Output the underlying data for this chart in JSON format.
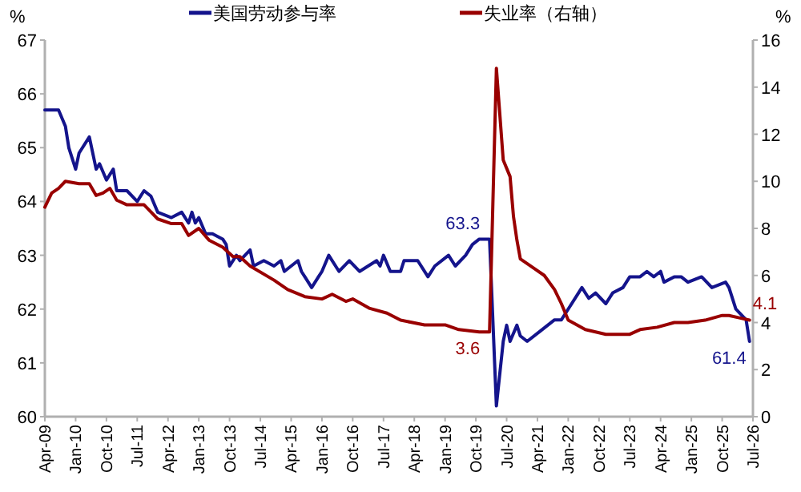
{
  "chart_data": {
    "type": "line",
    "ylabel": "%",
    "y2label": "%",
    "ylim": [
      60,
      67
    ],
    "yticks": [
      60,
      61,
      62,
      63,
      64,
      65,
      66,
      67
    ],
    "y2lim": [
      0,
      16
    ],
    "y2ticks": [
      0,
      2,
      4,
      6,
      8,
      10,
      12,
      14,
      16
    ],
    "xlim": [
      "2009-04",
      "2026-07"
    ],
    "xticks": [
      {
        "value": "2009-04",
        "label": "Apr-09"
      },
      {
        "value": "2010-01",
        "label": "Jan-10"
      },
      {
        "value": "2010-10",
        "label": "Oct-10"
      },
      {
        "value": "2011-07",
        "label": "Jul-11"
      },
      {
        "value": "2012-04",
        "label": "Apr-12"
      },
      {
        "value": "2013-01",
        "label": "Jan-13"
      },
      {
        "value": "2013-10",
        "label": "Oct-13"
      },
      {
        "value": "2014-07",
        "label": "Jul-14"
      },
      {
        "value": "2015-04",
        "label": "Apr-15"
      },
      {
        "value": "2016-01",
        "label": "Jan-16"
      },
      {
        "value": "2016-10",
        "label": "Oct-16"
      },
      {
        "value": "2017-07",
        "label": "Jul-17"
      },
      {
        "value": "2018-04",
        "label": "Apr-18"
      },
      {
        "value": "2019-01",
        "label": "Jan-19"
      },
      {
        "value": "2019-10",
        "label": "Oct-19"
      },
      {
        "value": "2020-07",
        "label": "Jul-20"
      },
      {
        "value": "2021-04",
        "label": "Apr-21"
      },
      {
        "value": "2022-01",
        "label": "Jan-22"
      },
      {
        "value": "2022-10",
        "label": "Oct-22"
      },
      {
        "value": "2023-07",
        "label": "Jul-23"
      },
      {
        "value": "2024-04",
        "label": "Apr-24"
      },
      {
        "value": "2025-01",
        "label": "Jan-25"
      },
      {
        "value": "2025-10",
        "label": "Oct-25"
      },
      {
        "value": "2026-07",
        "label": "Jul-26"
      }
    ],
    "legend": "top",
    "grid": false,
    "marker": "none",
    "line_style": "solid",
    "series": [
      {
        "name": "美国劳动参与率",
        "color": "#14148c",
        "x": [
          "2009-04",
          "2009-08",
          "2009-10",
          "2009-11",
          "2010-01",
          "2010-02",
          "2010-05",
          "2010-07",
          "2010-08",
          "2010-10",
          "2010-12",
          "2011-01",
          "2011-04",
          "2011-07",
          "2011-09",
          "2011-11",
          "2012-01",
          "2012-05",
          "2012-08",
          "2012-10",
          "2012-11",
          "2012-12",
          "2013-01",
          "2013-03",
          "2013-05",
          "2013-08",
          "2013-09",
          "2013-10",
          "2013-12",
          "2014-01",
          "2014-04",
          "2014-05",
          "2014-08",
          "2014-11",
          "2015-01",
          "2015-02",
          "2015-06",
          "2015-07",
          "2015-08",
          "2015-10",
          "2015-12",
          "2016-01",
          "2016-03",
          "2016-06",
          "2016-09",
          "2016-12",
          "2017-05",
          "2017-06",
          "2017-07",
          "2017-09",
          "2017-12",
          "2018-01",
          "2018-05",
          "2018-08",
          "2018-10",
          "2019-02",
          "2019-04",
          "2019-07",
          "2019-09",
          "2019-11",
          "2020-02",
          "2020-04",
          "2020-06",
          "2020-07",
          "2020-08",
          "2020-10",
          "2020-11",
          "2021-01",
          "2021-05",
          "2021-09",
          "2021-11",
          "2022-01",
          "2022-04",
          "2022-05",
          "2022-07",
          "2022-09",
          "2022-12",
          "2023-02",
          "2023-05",
          "2023-07",
          "2023-10",
          "2023-12",
          "2024-02",
          "2024-04",
          "2024-05",
          "2024-08",
          "2024-10",
          "2024-12",
          "2025-04",
          "2025-07",
          "2025-11",
          "2025-12",
          "2026-02",
          "2026-05",
          "2026-06"
        ],
        "values": [
          65.7,
          65.7,
          65.4,
          65.0,
          64.6,
          64.9,
          65.2,
          64.6,
          64.7,
          64.4,
          64.6,
          64.2,
          64.2,
          64.0,
          64.2,
          64.1,
          63.8,
          63.7,
          63.8,
          63.6,
          63.8,
          63.6,
          63.7,
          63.4,
          63.4,
          63.3,
          63.2,
          62.8,
          63.0,
          62.9,
          63.1,
          62.8,
          62.9,
          62.8,
          62.9,
          62.7,
          62.9,
          62.7,
          62.6,
          62.4,
          62.6,
          62.7,
          63.0,
          62.7,
          62.9,
          62.7,
          62.9,
          62.8,
          63.0,
          62.7,
          62.7,
          62.9,
          62.9,
          62.6,
          62.8,
          63.0,
          62.8,
          63.0,
          63.2,
          63.3,
          63.3,
          60.2,
          61.4,
          61.7,
          61.4,
          61.7,
          61.5,
          61.4,
          61.6,
          61.8,
          61.8,
          62.0,
          62.3,
          62.4,
          62.2,
          62.3,
          62.1,
          62.3,
          62.4,
          62.6,
          62.6,
          62.7,
          62.6,
          62.7,
          62.5,
          62.6,
          62.6,
          62.5,
          62.6,
          62.4,
          62.5,
          62.4,
          62.0,
          61.8,
          61.4
        ],
        "value_labels": [
          null,
          null,
          null,
          null,
          null,
          null,
          null,
          null,
          null,
          null,
          null,
          null,
          null,
          null,
          null,
          null,
          null,
          null,
          null,
          null,
          null,
          null,
          null,
          null,
          null,
          null,
          null,
          null,
          null,
          null,
          null,
          null,
          null,
          null,
          null,
          null,
          null,
          null,
          null,
          null,
          null,
          null,
          null,
          null,
          null,
          null,
          null,
          null,
          null,
          null,
          null,
          null,
          null,
          null,
          null,
          null,
          null,
          null,
          null,
          null,
          "63.3",
          null,
          null,
          null,
          null,
          null,
          null,
          null,
          null,
          null,
          null,
          null,
          null,
          null,
          null,
          null,
          null,
          null,
          null,
          null,
          null,
          null,
          null,
          null,
          null,
          null,
          null,
          null,
          null,
          null,
          null,
          null,
          null,
          null,
          "61.4"
        ]
      },
      {
        "name": "失业率（右轴）",
        "color": "#990000",
        "axis": "y2",
        "x": [
          "2009-04",
          "2009-06",
          "2009-08",
          "2009-10",
          "2010-02",
          "2010-05",
          "2010-07",
          "2010-09",
          "2010-11",
          "2011-01",
          "2011-04",
          "2011-09",
          "2012-01",
          "2012-05",
          "2012-08",
          "2012-10",
          "2013-01",
          "2013-04",
          "2013-08",
          "2013-11",
          "2014-01",
          "2014-04",
          "2014-11",
          "2015-03",
          "2015-08",
          "2016-01",
          "2016-04",
          "2016-08",
          "2016-10",
          "2017-03",
          "2017-08",
          "2017-12",
          "2018-07",
          "2019-01",
          "2019-05",
          "2019-11",
          "2020-02",
          "2020-04",
          "2020-06",
          "2020-08",
          "2020-09",
          "2020-10",
          "2020-11",
          "2021-03",
          "2021-06",
          "2021-09",
          "2021-11",
          "2022-01",
          "2022-06",
          "2022-12",
          "2023-07",
          "2023-10",
          "2024-03",
          "2024-08",
          "2024-12",
          "2025-05",
          "2025-10",
          "2025-12",
          "2026-03",
          "2026-06"
        ],
        "values": [
          8.9,
          9.5,
          9.7,
          10.0,
          9.9,
          9.9,
          9.4,
          9.5,
          9.7,
          9.2,
          9.0,
          9.0,
          8.4,
          8.2,
          8.2,
          7.7,
          8.0,
          7.5,
          7.2,
          6.8,
          6.8,
          6.4,
          5.8,
          5.4,
          5.1,
          5.0,
          5.2,
          4.9,
          5.0,
          4.6,
          4.4,
          4.1,
          3.9,
          3.9,
          3.7,
          3.6,
          3.6,
          14.8,
          10.9,
          10.2,
          8.5,
          7.5,
          6.7,
          6.3,
          6.0,
          5.4,
          4.8,
          4.1,
          3.7,
          3.5,
          3.5,
          3.7,
          3.8,
          4.0,
          4.0,
          4.1,
          4.3,
          4.3,
          4.2,
          4.1
        ],
        "value_labels": [
          null,
          null,
          null,
          null,
          null,
          null,
          null,
          null,
          null,
          null,
          null,
          null,
          null,
          null,
          null,
          null,
          null,
          null,
          null,
          null,
          null,
          null,
          null,
          null,
          null,
          null,
          null,
          null,
          null,
          null,
          null,
          null,
          null,
          null,
          null,
          null,
          "3.6",
          null,
          null,
          null,
          null,
          null,
          null,
          null,
          null,
          null,
          null,
          null,
          null,
          null,
          null,
          null,
          null,
          null,
          null,
          null,
          null,
          null,
          null,
          "4.1"
        ]
      }
    ]
  }
}
